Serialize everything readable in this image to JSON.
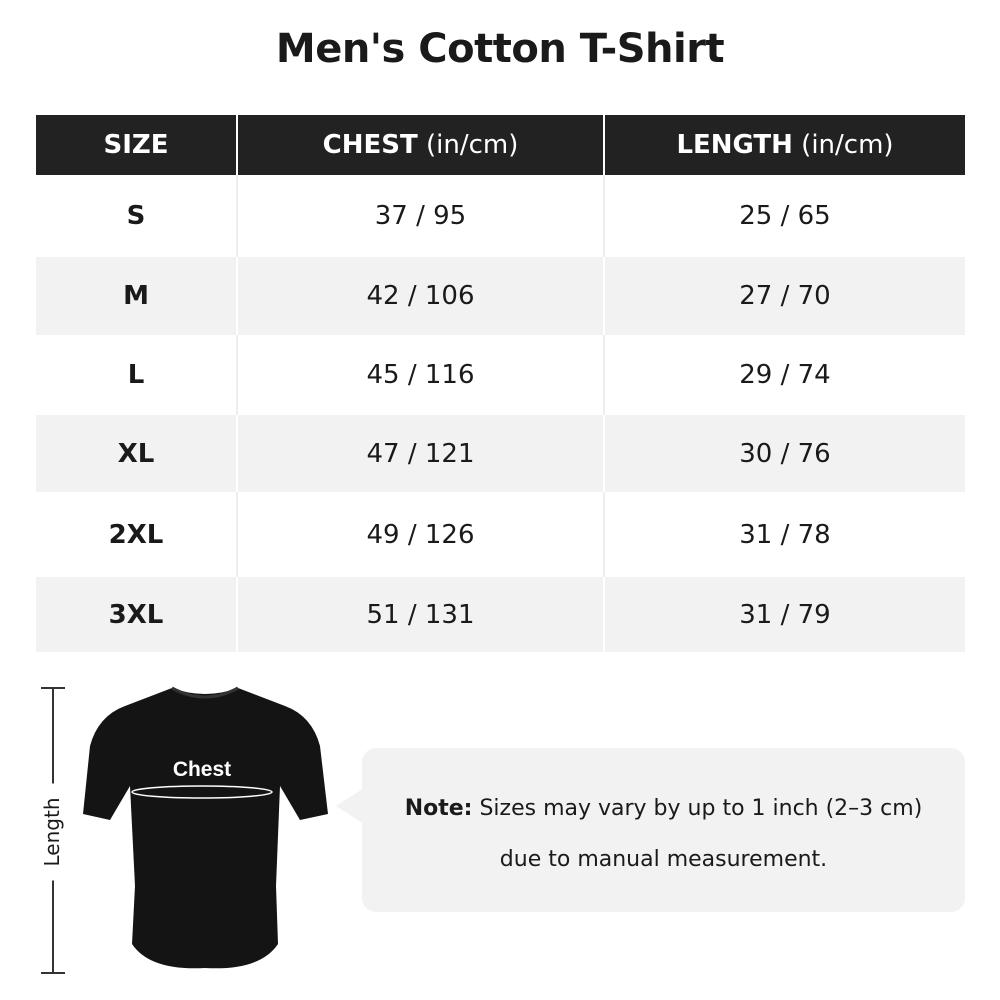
{
  "title": "Men's Cotton T-Shirt",
  "table": {
    "headers": [
      {
        "label": "SIZE",
        "unit": ""
      },
      {
        "label": "CHEST",
        "unit": " (in/cm)"
      },
      {
        "label": "LENGTH",
        "unit": " (in/cm)"
      }
    ],
    "rows": [
      {
        "size": "S",
        "chest": "37 / 95",
        "length": "25 / 65"
      },
      {
        "size": "M",
        "chest": "42 / 106",
        "length": "27 / 70"
      },
      {
        "size": "L",
        "chest": "45 / 116",
        "length": "29 / 74"
      },
      {
        "size": "XL",
        "chest": "47 / 121",
        "length": "30 / 76"
      },
      {
        "size": "2XL",
        "chest": "49 / 126",
        "length": "31 / 78"
      },
      {
        "size": "3XL",
        "chest": "51 / 131",
        "length": "31 / 79"
      }
    ]
  },
  "diagram": {
    "chest_label": "Chest",
    "length_label": "Length"
  },
  "note": {
    "prefix": "Note:",
    "line1": " Sizes may vary by up to 1 inch (2–3 cm)",
    "line2": "due to manual measurement."
  },
  "colors": {
    "header_bg": "#222222",
    "stripe": "#f2f2f2"
  }
}
